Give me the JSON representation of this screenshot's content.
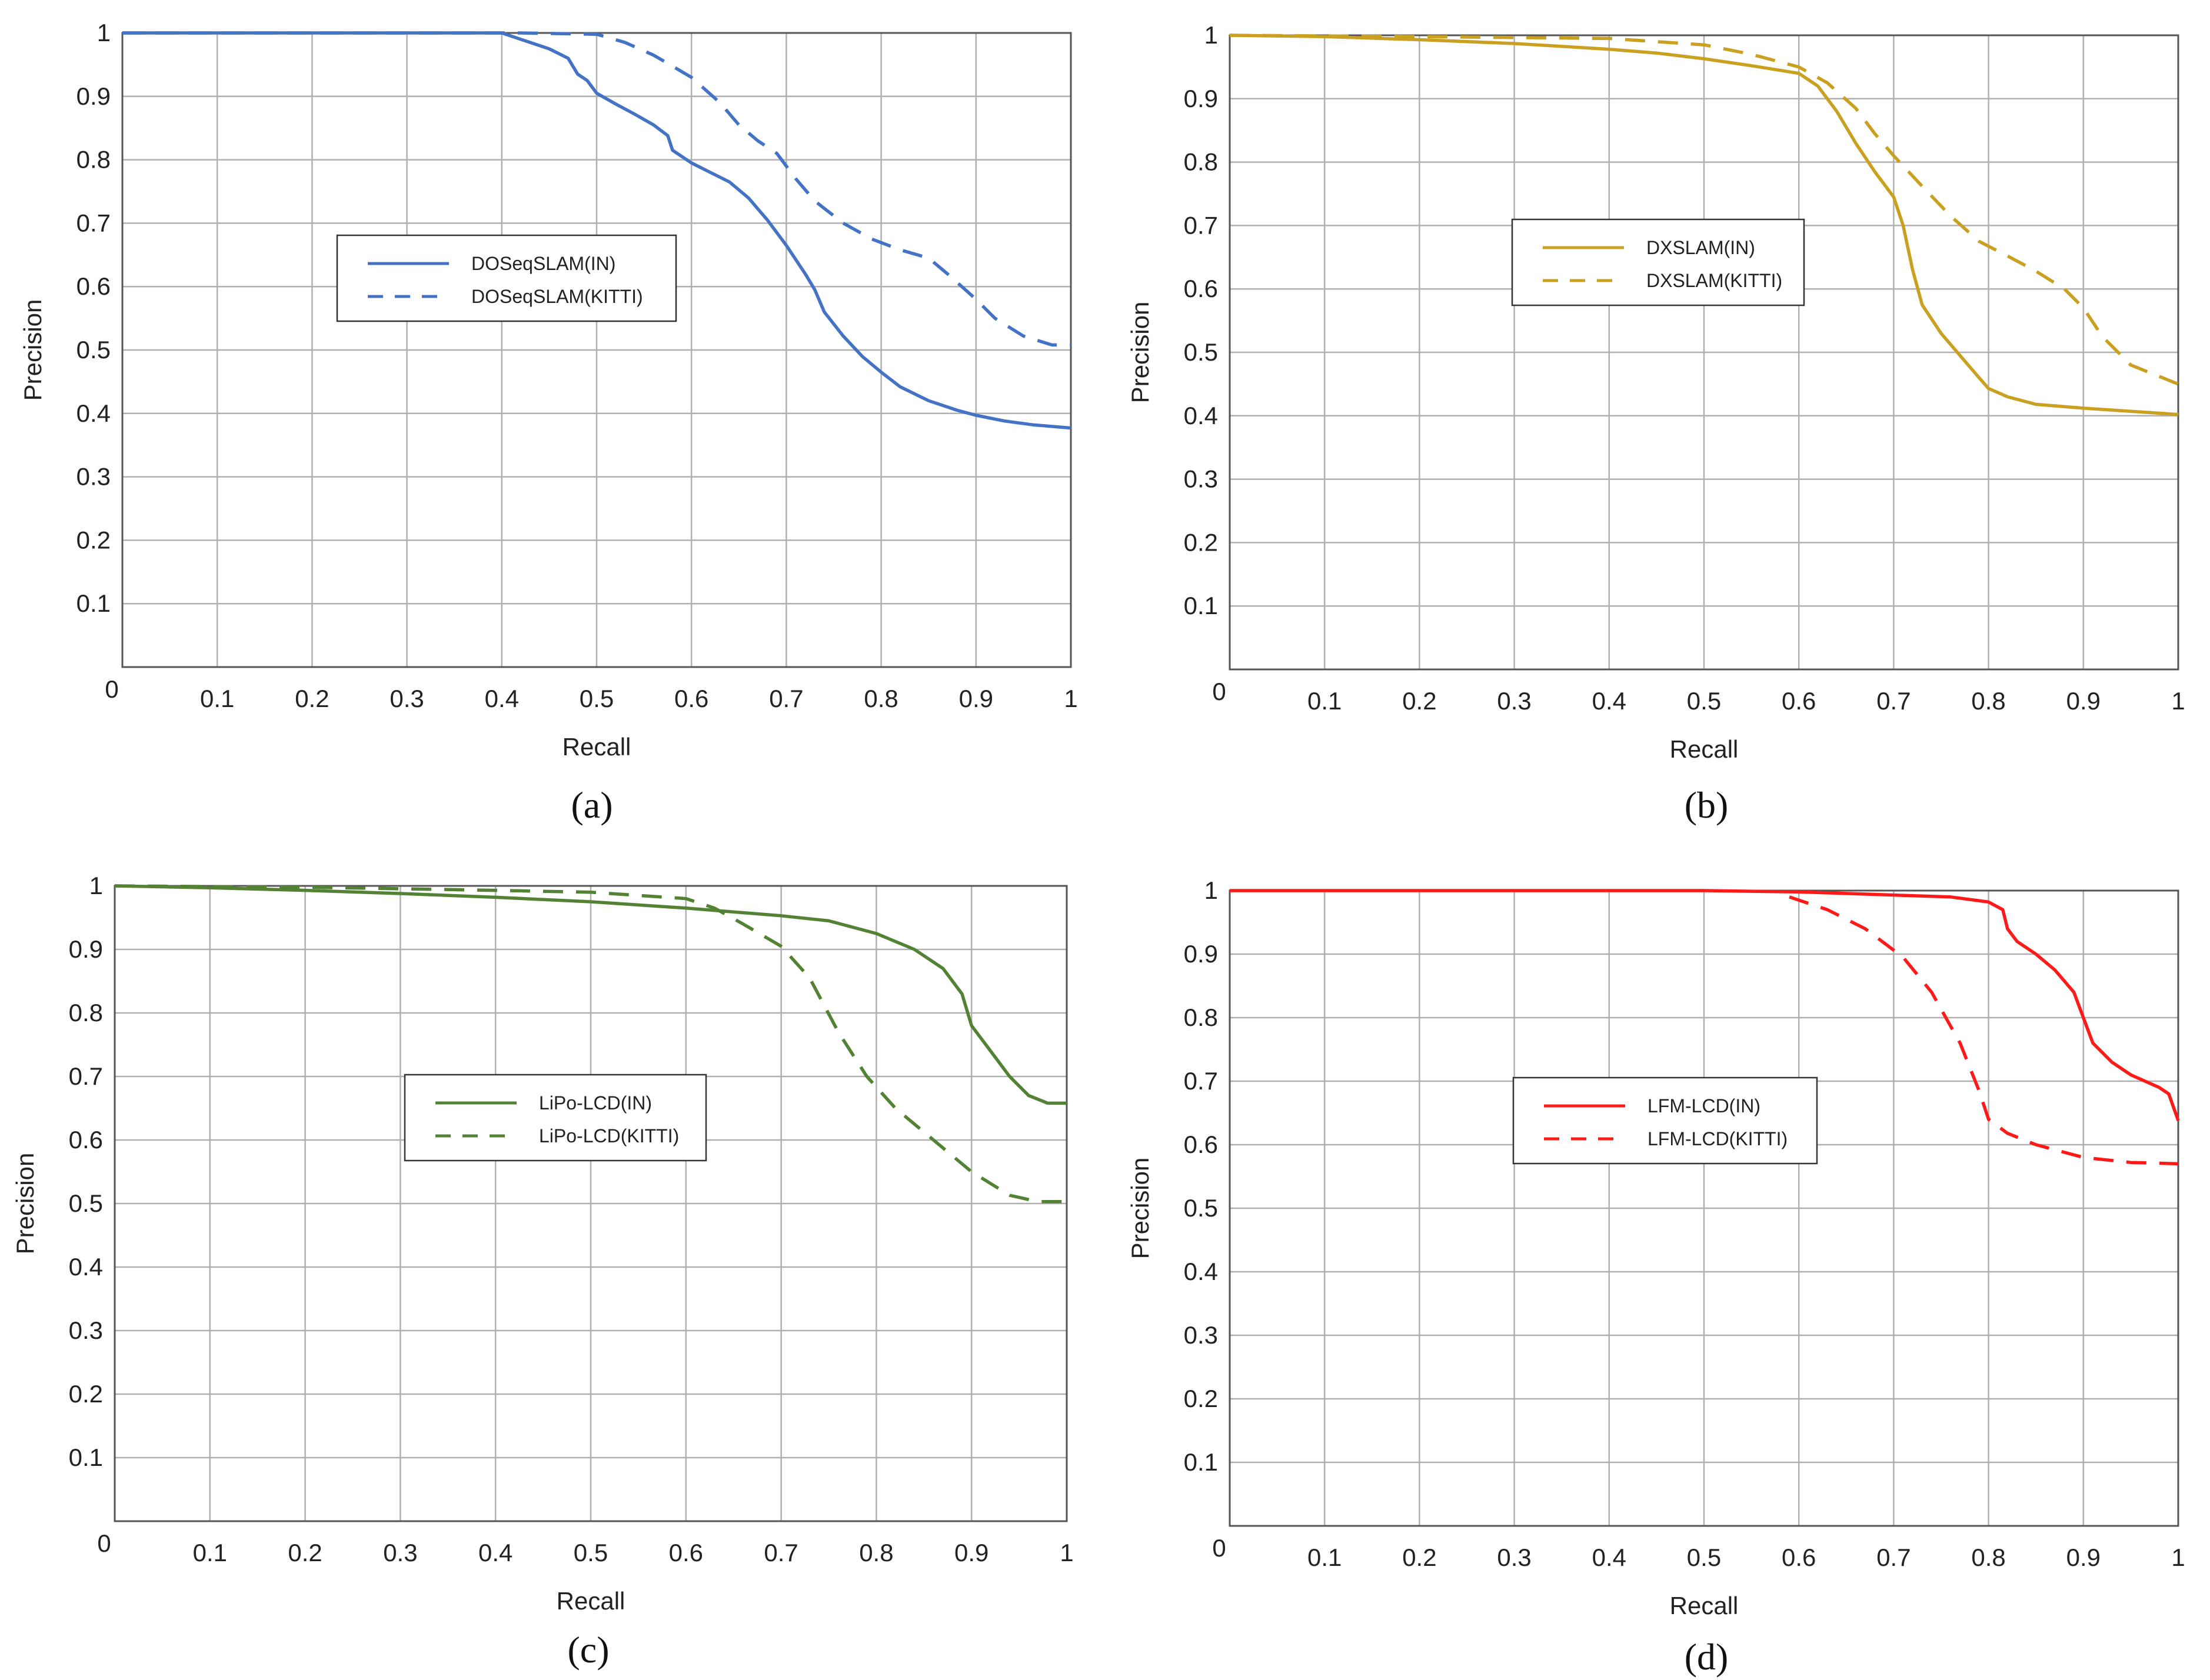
{
  "figure": {
    "colors": {
      "background": "#ffffff",
      "grid": "#b0b0b0",
      "axis_zero_line": "#333333",
      "frame": "#555555",
      "text": "#222222"
    }
  },
  "chart_data": [
    {
      "type": "line",
      "caption": "(a)",
      "title": "",
      "xlabel": "Recall",
      "ylabel": "Precision",
      "xlim": [
        0,
        1
      ],
      "ylim": [
        0,
        1
      ],
      "grid": true,
      "origin_label": "0",
      "x_ticks": [
        "0.1",
        "0.2",
        "0.3",
        "0.4",
        "0.5",
        "0.6",
        "0.7",
        "0.8",
        "0.9",
        "1"
      ],
      "y_ticks": [
        "0.1",
        "0.2",
        "0.3",
        "0.4",
        "0.5",
        "0.6",
        "0.7",
        "0.8",
        "0.9",
        "1"
      ],
      "legend_position": "center-left",
      "series": [
        {
          "name": "DOSeqSLAM(IN)",
          "color": "#4472c4",
          "dash": "solid",
          "points": [
            [
              0,
              1
            ],
            [
              0.4,
              1
            ],
            [
              0.42,
              0.99
            ],
            [
              0.45,
              0.975
            ],
            [
              0.47,
              0.96
            ],
            [
              0.48,
              0.935
            ],
            [
              0.49,
              0.925
            ],
            [
              0.5,
              0.905
            ],
            [
              0.52,
              0.888
            ],
            [
              0.54,
              0.872
            ],
            [
              0.56,
              0.855
            ],
            [
              0.575,
              0.838
            ],
            [
              0.58,
              0.815
            ],
            [
              0.6,
              0.795
            ],
            [
              0.62,
              0.78
            ],
            [
              0.64,
              0.765
            ],
            [
              0.66,
              0.74
            ],
            [
              0.68,
              0.705
            ],
            [
              0.7,
              0.665
            ],
            [
              0.72,
              0.62
            ],
            [
              0.73,
              0.595
            ],
            [
              0.74,
              0.56
            ],
            [
              0.76,
              0.522
            ],
            [
              0.78,
              0.49
            ],
            [
              0.8,
              0.465
            ],
            [
              0.82,
              0.442
            ],
            [
              0.85,
              0.42
            ],
            [
              0.88,
              0.405
            ],
            [
              0.9,
              0.397
            ],
            [
              0.93,
              0.388
            ],
            [
              0.96,
              0.382
            ],
            [
              1,
              0.377
            ]
          ]
        },
        {
          "name": "DOSeqSLAM(KITTI)",
          "color": "#4472c4",
          "dash": "dashed",
          "points": [
            [
              0,
              1
            ],
            [
              0.42,
              1
            ],
            [
              0.5,
              0.998
            ],
            [
              0.53,
              0.985
            ],
            [
              0.56,
              0.965
            ],
            [
              0.6,
              0.93
            ],
            [
              0.63,
              0.89
            ],
            [
              0.65,
              0.855
            ],
            [
              0.67,
              0.83
            ],
            [
              0.69,
              0.81
            ],
            [
              0.71,
              0.77
            ],
            [
              0.73,
              0.735
            ],
            [
              0.76,
              0.7
            ],
            [
              0.79,
              0.675
            ],
            [
              0.82,
              0.658
            ],
            [
              0.85,
              0.645
            ],
            [
              0.87,
              0.62
            ],
            [
              0.9,
              0.58
            ],
            [
              0.92,
              0.55
            ],
            [
              0.95,
              0.522
            ],
            [
              0.98,
              0.508
            ],
            [
              1,
              0.508
            ]
          ]
        }
      ]
    },
    {
      "type": "line",
      "caption": "(b)",
      "title": "",
      "xlabel": "Recall",
      "ylabel": "Precision",
      "xlim": [
        0,
        1
      ],
      "ylim": [
        0,
        1
      ],
      "grid": true,
      "origin_label": "0",
      "x_ticks": [
        "0.1",
        "0.2",
        "0.3",
        "0.4",
        "0.5",
        "0.6",
        "0.7",
        "0.8",
        "0.9",
        "1"
      ],
      "y_ticks": [
        "0.1",
        "0.2",
        "0.3",
        "0.4",
        "0.5",
        "0.6",
        "0.7",
        "0.8",
        "0.9",
        "1"
      ],
      "legend_position": "center",
      "series": [
        {
          "name": "DXSLAM(IN)",
          "color": "#c9a020",
          "dash": "solid",
          "points": [
            [
              0,
              1
            ],
            [
              0.1,
              0.998
            ],
            [
              0.2,
              0.993
            ],
            [
              0.3,
              0.987
            ],
            [
              0.4,
              0.978
            ],
            [
              0.45,
              0.972
            ],
            [
              0.5,
              0.963
            ],
            [
              0.55,
              0.952
            ],
            [
              0.6,
              0.94
            ],
            [
              0.62,
              0.92
            ],
            [
              0.64,
              0.88
            ],
            [
              0.66,
              0.83
            ],
            [
              0.68,
              0.785
            ],
            [
              0.7,
              0.745
            ],
            [
              0.71,
              0.7
            ],
            [
              0.72,
              0.63
            ],
            [
              0.73,
              0.575
            ],
            [
              0.75,
              0.53
            ],
            [
              0.77,
              0.495
            ],
            [
              0.79,
              0.46
            ],
            [
              0.8,
              0.443
            ],
            [
              0.82,
              0.43
            ],
            [
              0.85,
              0.418
            ],
            [
              0.9,
              0.412
            ],
            [
              0.95,
              0.407
            ],
            [
              1,
              0.402
            ]
          ]
        },
        {
          "name": "DXSLAM(KITTI)",
          "color": "#c9a020",
          "dash": "dashed",
          "points": [
            [
              0,
              1
            ],
            [
              0.2,
              0.998
            ],
            [
              0.4,
              0.995
            ],
            [
              0.5,
              0.985
            ],
            [
              0.55,
              0.97
            ],
            [
              0.6,
              0.95
            ],
            [
              0.63,
              0.925
            ],
            [
              0.66,
              0.885
            ],
            [
              0.68,
              0.845
            ],
            [
              0.7,
              0.81
            ],
            [
              0.73,
              0.762
            ],
            [
              0.76,
              0.715
            ],
            [
              0.79,
              0.675
            ],
            [
              0.82,
              0.652
            ],
            [
              0.85,
              0.628
            ],
            [
              0.88,
              0.6
            ],
            [
              0.9,
              0.57
            ],
            [
              0.92,
              0.525
            ],
            [
              0.95,
              0.48
            ],
            [
              1,
              0.45
            ]
          ]
        }
      ]
    },
    {
      "type": "line",
      "caption": "(c)",
      "title": "",
      "xlabel": "Recall",
      "ylabel": "Precision",
      "xlim": [
        0,
        1
      ],
      "ylim": [
        0,
        1
      ],
      "grid": true,
      "origin_label": "0",
      "x_ticks": [
        "0.1",
        "0.2",
        "0.3",
        "0.4",
        "0.5",
        "0.6",
        "0.7",
        "0.8",
        "0.9",
        "1"
      ],
      "y_ticks": [
        "0.1",
        "0.2",
        "0.3",
        "0.4",
        "0.5",
        "0.6",
        "0.7",
        "0.8",
        "0.9",
        "1"
      ],
      "legend_position": "center",
      "series": [
        {
          "name": "LiPo-LCD(IN)",
          "color": "#548235",
          "dash": "solid",
          "points": [
            [
              0,
              1
            ],
            [
              0.1,
              0.997
            ],
            [
              0.2,
              0.993
            ],
            [
              0.3,
              0.988
            ],
            [
              0.4,
              0.982
            ],
            [
              0.5,
              0.975
            ],
            [
              0.6,
              0.965
            ],
            [
              0.7,
              0.953
            ],
            [
              0.75,
              0.945
            ],
            [
              0.8,
              0.925
            ],
            [
              0.84,
              0.9
            ],
            [
              0.87,
              0.87
            ],
            [
              0.89,
              0.83
            ],
            [
              0.9,
              0.78
            ],
            [
              0.92,
              0.74
            ],
            [
              0.94,
              0.7
            ],
            [
              0.96,
              0.67
            ],
            [
              0.98,
              0.658
            ],
            [
              1,
              0.658
            ]
          ]
        },
        {
          "name": "LiPo-LCD(KITTI)",
          "color": "#548235",
          "dash": "dashed",
          "points": [
            [
              0,
              1
            ],
            [
              0.2,
              0.998
            ],
            [
              0.4,
              0.993
            ],
            [
              0.5,
              0.99
            ],
            [
              0.6,
              0.98
            ],
            [
              0.63,
              0.965
            ],
            [
              0.66,
              0.94
            ],
            [
              0.7,
              0.905
            ],
            [
              0.73,
              0.855
            ],
            [
              0.76,
              0.77
            ],
            [
              0.79,
              0.7
            ],
            [
              0.82,
              0.65
            ],
            [
              0.86,
              0.6
            ],
            [
              0.9,
              0.55
            ],
            [
              0.94,
              0.513
            ],
            [
              0.97,
              0.503
            ],
            [
              1,
              0.503
            ]
          ]
        }
      ]
    },
    {
      "type": "line",
      "caption": "(d)",
      "title": "",
      "xlabel": "Recall",
      "ylabel": "Precision",
      "xlim": [
        0,
        1
      ],
      "ylim": [
        0,
        1
      ],
      "grid": true,
      "origin_label": "0",
      "x_ticks": [
        "0.1",
        "0.2",
        "0.3",
        "0.4",
        "0.5",
        "0.6",
        "0.7",
        "0.8",
        "0.9",
        "1"
      ],
      "y_ticks": [
        "0.1",
        "0.2",
        "0.3",
        "0.4",
        "0.5",
        "0.6",
        "0.7",
        "0.8",
        "0.9",
        "1"
      ],
      "legend_position": "center",
      "series": [
        {
          "name": "LFM-LCD(IN)",
          "color": "#ff1a1a",
          "dash": "solid",
          "points": [
            [
              0,
              1
            ],
            [
              0.5,
              1
            ],
            [
              0.6,
              0.998
            ],
            [
              0.7,
              0.993
            ],
            [
              0.76,
              0.99
            ],
            [
              0.8,
              0.982
            ],
            [
              0.815,
              0.97
            ],
            [
              0.82,
              0.94
            ],
            [
              0.83,
              0.92
            ],
            [
              0.85,
              0.9
            ],
            [
              0.87,
              0.875
            ],
            [
              0.89,
              0.84
            ],
            [
              0.9,
              0.8
            ],
            [
              0.91,
              0.76
            ],
            [
              0.93,
              0.73
            ],
            [
              0.95,
              0.71
            ],
            [
              0.98,
              0.69
            ],
            [
              0.99,
              0.68
            ],
            [
              1,
              0.638
            ]
          ]
        },
        {
          "name": "LFM-LCD(KITTI)",
          "color": "#ff1a1a",
          "dash": "dashed",
          "points": [
            [
              0.59,
              0.99
            ],
            [
              0.63,
              0.97
            ],
            [
              0.67,
              0.94
            ],
            [
              0.71,
              0.895
            ],
            [
              0.74,
              0.84
            ],
            [
              0.77,
              0.76
            ],
            [
              0.79,
              0.685
            ],
            [
              0.8,
              0.64
            ],
            [
              0.82,
              0.618
            ],
            [
              0.85,
              0.6
            ],
            [
              0.9,
              0.58
            ],
            [
              0.95,
              0.572
            ],
            [
              1,
              0.57
            ]
          ]
        }
      ]
    }
  ]
}
